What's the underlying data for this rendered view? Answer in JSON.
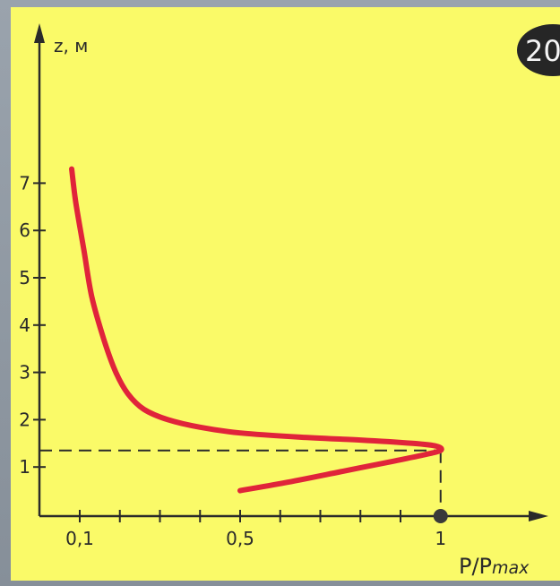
{
  "badge": {
    "text": "20"
  },
  "chart_data": {
    "type": "line",
    "title": "",
    "xlabel": "P/Pmax",
    "xlabel_parts": {
      "main": "P/P",
      "sub": "max"
    },
    "ylabel": "z, м",
    "x_ticks": [
      {
        "value": 0.1,
        "label": "0,1"
      },
      {
        "value": 0.5,
        "label": "0,5"
      },
      {
        "value": 1.0,
        "label": "1"
      }
    ],
    "y_ticks": [
      {
        "value": 1,
        "label": "1"
      },
      {
        "value": 2,
        "label": "2"
      },
      {
        "value": 3,
        "label": "3"
      },
      {
        "value": 4,
        "label": "4"
      },
      {
        "value": 5,
        "label": "5"
      },
      {
        "value": 6,
        "label": "6"
      },
      {
        "value": 7,
        "label": "7"
      }
    ],
    "xlim": [
      0,
      1.1
    ],
    "ylim": [
      0,
      8.5
    ],
    "series": [
      {
        "color": "#e0243a",
        "points": [
          [
            0.5,
            0.5
          ],
          [
            0.62,
            0.68
          ],
          [
            0.75,
            0.9
          ],
          [
            0.88,
            1.12
          ],
          [
            0.96,
            1.26
          ],
          [
            1.0,
            1.35
          ],
          [
            0.99,
            1.44
          ],
          [
            0.93,
            1.5
          ],
          [
            0.8,
            1.57
          ],
          [
            0.65,
            1.63
          ],
          [
            0.5,
            1.72
          ],
          [
            0.4,
            1.84
          ],
          [
            0.32,
            2.0
          ],
          [
            0.26,
            2.22
          ],
          [
            0.22,
            2.55
          ],
          [
            0.19,
            3.0
          ],
          [
            0.16,
            3.7
          ],
          [
            0.13,
            4.6
          ],
          [
            0.11,
            5.6
          ],
          [
            0.09,
            6.6
          ],
          [
            0.08,
            7.3
          ]
        ]
      }
    ],
    "reference": {
      "x": 1.0,
      "y": 1.35,
      "style": "dashed"
    },
    "marker": {
      "x": 1.0,
      "y": 0
    }
  }
}
